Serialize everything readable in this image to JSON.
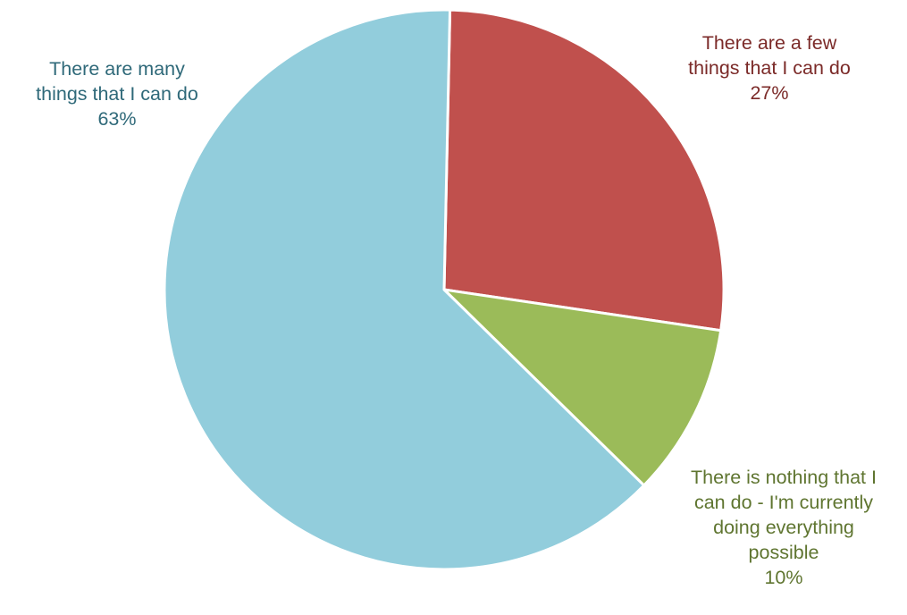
{
  "chart_data": {
    "type": "pie",
    "start_angle_deg": 1.2,
    "direction": "clockwise",
    "slices": [
      {
        "label": "There are a few\nthings that I can do",
        "value": 27,
        "value_label": "27%",
        "color": "#C0504D",
        "label_color": "#7B2A28"
      },
      {
        "label": "There is nothing that I\ncan do - I'm currently\ndoing everything\npossible",
        "value": 10,
        "value_label": "10%",
        "color": "#9BBB59",
        "label_color": "#5F7530"
      },
      {
        "label": "There are many\nthings that I can do",
        "value": 63,
        "value_label": "63%",
        "color": "#92CDDC",
        "label_color": "#2F6979"
      }
    ]
  }
}
